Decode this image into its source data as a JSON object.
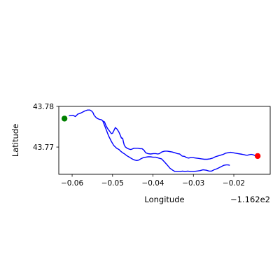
{
  "chart_data": {
    "type": "line",
    "title": "",
    "xlabel": "Longitude",
    "ylabel": "Latitude",
    "x_offset_label": "−1.162e2",
    "xlim": [
      -0.0633,
      -0.011
    ],
    "ylim": [
      43.7633,
      43.78
    ],
    "xticks": [
      -0.06,
      -0.05,
      -0.04,
      -0.03,
      -0.02
    ],
    "xtick_labels": [
      "−0.06",
      "−0.05",
      "−0.04",
      "−0.03",
      "−0.02"
    ],
    "yticks": [
      43.77,
      43.78
    ],
    "ytick_labels": [
      "43.77",
      "43.78"
    ],
    "grid": false,
    "series": [
      {
        "color": "#0000ff",
        "x": [
          -0.0608,
          -0.0598,
          -0.0592,
          -0.0586,
          -0.058,
          -0.0574,
          -0.0568,
          -0.0562,
          -0.0556,
          -0.0551,
          -0.0548,
          -0.0546,
          -0.0543,
          -0.054,
          -0.0537,
          -0.0532,
          -0.0527,
          -0.0524,
          -0.052,
          -0.0516,
          -0.0512,
          -0.0508,
          -0.0503,
          -0.05,
          -0.0497,
          -0.0493,
          -0.0489,
          -0.0485,
          -0.0483,
          -0.0481,
          -0.0478,
          -0.0475,
          -0.0473,
          -0.0471,
          -0.0468,
          -0.0464,
          -0.0459,
          -0.0455,
          -0.0452,
          -0.0447,
          -0.0442,
          -0.0437,
          -0.0432,
          -0.0427,
          -0.0422,
          -0.0418,
          -0.0413,
          -0.0406,
          -0.0399,
          -0.0393,
          -0.0388,
          -0.0384,
          -0.0378,
          -0.0371,
          -0.0365,
          -0.0359,
          -0.0353,
          -0.0346,
          -0.034,
          -0.0334,
          -0.0328,
          -0.0322,
          -0.0317,
          -0.0312,
          -0.0307,
          -0.0301,
          -0.0294,
          -0.0287,
          -0.028,
          -0.0273,
          -0.0266,
          -0.0259,
          -0.0252,
          -0.0246,
          -0.024,
          -0.0233,
          -0.0226,
          -0.022,
          -0.0214,
          -0.0208,
          -0.0202,
          -0.0196,
          -0.019,
          -0.0184,
          -0.0179,
          -0.0174,
          -0.017,
          -0.0166,
          -0.0162,
          -0.0157,
          -0.0152,
          -0.0147
        ],
        "y": [
          43.7777,
          43.7778,
          43.7775,
          43.7781,
          43.7783,
          43.7786,
          43.7789,
          43.7791,
          43.7791,
          43.7788,
          43.7784,
          43.7779,
          43.7775,
          43.7772,
          43.777,
          43.7768,
          43.7767,
          43.7764,
          43.7762,
          43.7752,
          43.7745,
          43.774,
          43.7733,
          43.7734,
          43.774,
          43.7748,
          43.7744,
          43.7738,
          43.7734,
          43.7729,
          43.7722,
          43.7722,
          43.7712,
          43.7705,
          43.77,
          43.7697,
          43.7695,
          43.7694,
          43.7695,
          43.7697,
          43.7697,
          43.7697,
          43.7696,
          43.7696,
          43.7692,
          43.7686,
          43.7684,
          43.7683,
          43.7684,
          43.7684,
          43.7683,
          43.7684,
          43.7688,
          43.769,
          43.769,
          43.7689,
          43.7688,
          43.7686,
          43.7684,
          43.7683,
          43.7678,
          43.7677,
          43.7674,
          43.7673,
          43.7674,
          43.7674,
          43.7673,
          43.7672,
          43.7671,
          43.767,
          43.767,
          43.7671,
          43.7673,
          43.7676,
          43.7678,
          43.768,
          43.7682,
          43.7685,
          43.7686,
          43.7687,
          43.7686,
          43.7685,
          43.7684,
          43.7683,
          43.7682,
          43.7681,
          43.768,
          43.768,
          43.7681,
          43.7682,
          43.7681,
          43.7679
        ]
      },
      {
        "color": "#0000ff",
        "x": [
          -0.0524,
          -0.0517,
          -0.051,
          -0.0503,
          -0.0497,
          -0.049,
          -0.0484,
          -0.048,
          -0.0475,
          -0.047,
          -0.0465,
          -0.046,
          -0.0455,
          -0.045,
          -0.0445,
          -0.044,
          -0.0435,
          -0.043,
          -0.0424,
          -0.0418,
          -0.0412,
          -0.0406,
          -0.04,
          -0.0393,
          -0.0386,
          -0.0379,
          -0.0372,
          -0.0365,
          -0.0358,
          -0.0351,
          -0.0346,
          -0.0342,
          -0.0337,
          -0.0332,
          -0.0327,
          -0.0321,
          -0.0314,
          -0.0307,
          -0.03,
          -0.0292,
          -0.0284,
          -0.0276,
          -0.0268,
          -0.0261,
          -0.0255,
          -0.0249,
          -0.0243,
          -0.0237,
          -0.0231,
          -0.0225,
          -0.0219,
          -0.0214,
          -0.021
        ],
        "y": [
          43.7764,
          43.7746,
          43.7728,
          43.7714,
          43.7704,
          43.7697,
          43.7694,
          43.769,
          43.7686,
          43.7683,
          43.7679,
          43.7676,
          43.7673,
          43.767,
          43.7668,
          43.7667,
          43.7668,
          43.7671,
          43.7674,
          43.7675,
          43.7676,
          43.7676,
          43.7675,
          43.7675,
          43.7673,
          43.7671,
          43.7664,
          43.7656,
          43.7648,
          43.7643,
          43.764,
          43.764,
          43.764,
          43.764,
          43.7641,
          43.764,
          43.7641,
          43.764,
          43.764,
          43.7641,
          43.7642,
          43.7644,
          43.7643,
          43.7641,
          43.7641,
          43.7644,
          43.7646,
          43.7649,
          43.7652,
          43.7655,
          43.7656,
          43.7656,
          43.7655
        ]
      }
    ],
    "markers": [
      {
        "x": -0.0619,
        "y": 43.777,
        "color": "#008000"
      },
      {
        "x": -0.0141,
        "y": 43.7678,
        "color": "#ff0000"
      }
    ]
  }
}
